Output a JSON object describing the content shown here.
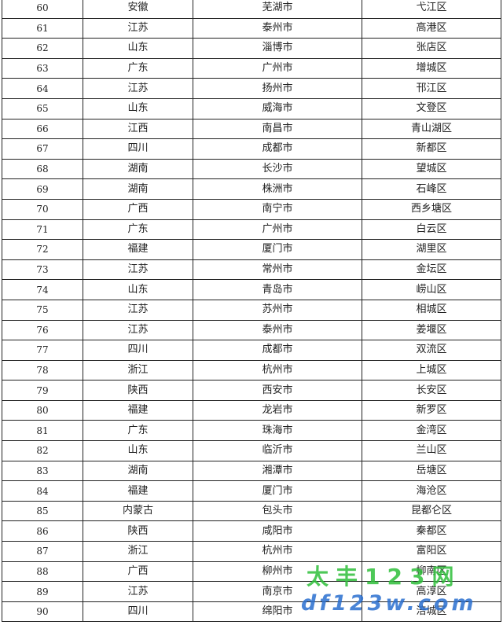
{
  "table": {
    "rows": [
      [
        "60",
        "安徽",
        "芜湖市",
        "弋江区"
      ],
      [
        "61",
        "江苏",
        "泰州市",
        "高港区"
      ],
      [
        "62",
        "山东",
        "淄博市",
        "张店区"
      ],
      [
        "63",
        "广东",
        "广州市",
        "增城区"
      ],
      [
        "64",
        "江苏",
        "扬州市",
        "邗江区"
      ],
      [
        "65",
        "山东",
        "威海市",
        "文登区"
      ],
      [
        "66",
        "江西",
        "南昌市",
        "青山湖区"
      ],
      [
        "67",
        "四川",
        "成都市",
        "新都区"
      ],
      [
        "68",
        "湖南",
        "长沙市",
        "望城区"
      ],
      [
        "69",
        "湖南",
        "株洲市",
        "石峰区"
      ],
      [
        "70",
        "广西",
        "南宁市",
        "西乡塘区"
      ],
      [
        "71",
        "广东",
        "广州市",
        "白云区"
      ],
      [
        "72",
        "福建",
        "厦门市",
        "湖里区"
      ],
      [
        "73",
        "江苏",
        "常州市",
        "金坛区"
      ],
      [
        "74",
        "山东",
        "青岛市",
        "崂山区"
      ],
      [
        "75",
        "江苏",
        "苏州市",
        "相城区"
      ],
      [
        "76",
        "江苏",
        "泰州市",
        "姜堰区"
      ],
      [
        "77",
        "四川",
        "成都市",
        "双流区"
      ],
      [
        "78",
        "浙江",
        "杭州市",
        "上城区"
      ],
      [
        "79",
        "陕西",
        "西安市",
        "长安区"
      ],
      [
        "80",
        "福建",
        "龙岩市",
        "新罗区"
      ],
      [
        "81",
        "广东",
        "珠海市",
        "金湾区"
      ],
      [
        "82",
        "山东",
        "临沂市",
        "兰山区"
      ],
      [
        "83",
        "湖南",
        "湘潭市",
        "岳塘区"
      ],
      [
        "84",
        "福建",
        "厦门市",
        "海沧区"
      ],
      [
        "85",
        "内蒙古",
        "包头市",
        "昆都仑区"
      ],
      [
        "86",
        "陕西",
        "咸阳市",
        "秦都区"
      ],
      [
        "87",
        "浙江",
        "杭州市",
        "富阳区"
      ],
      [
        "88",
        "广西",
        "柳州市",
        "柳南区"
      ],
      [
        "89",
        "江苏",
        "南京市",
        "高淳区"
      ],
      [
        "90",
        "四川",
        "绵阳市",
        "涪城区"
      ]
    ]
  },
  "watermark": {
    "name": "太丰123网",
    "url": "df123w.com"
  }
}
